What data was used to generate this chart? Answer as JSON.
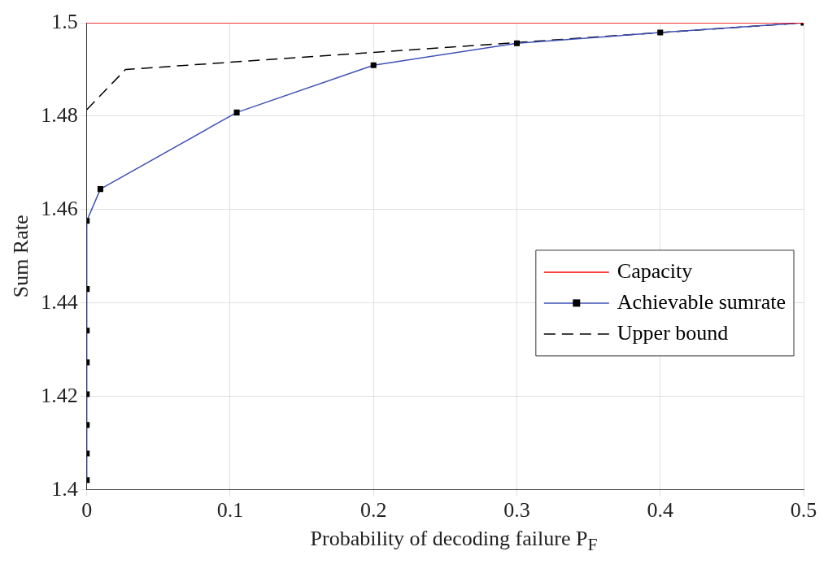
{
  "chart_data": {
    "type": "line",
    "xlabel": "Probability of decoding failure P$_{F}$",
    "ylabel": "Sum Rate",
    "xlim": [
      0,
      0.5
    ],
    "ylim": [
      1.4,
      1.5
    ],
    "xticks": [
      0,
      0.1,
      0.2,
      0.3,
      0.4,
      0.5
    ],
    "yticks": [
      1.4,
      1.42,
      1.44,
      1.46,
      1.48,
      1.5
    ],
    "grid": true,
    "legend": "right",
    "series": [
      {
        "name": "Capacity",
        "color": "#ff0000",
        "x": [
          0,
          0.5
        ],
        "values": [
          1.5,
          1.5
        ],
        "marker": "none",
        "line_style": "solid"
      },
      {
        "name": "Achievable sumrate",
        "color": "#3f51b5",
        "x": [
          0,
          0,
          0,
          0,
          0,
          0,
          0,
          0,
          0.0095,
          0.1046,
          0.2,
          0.3,
          0.4,
          0.5
        ],
        "values": [
          1.4021,
          1.4078,
          1.4139,
          1.4205,
          1.4273,
          1.4341,
          1.443,
          1.4576,
          1.4644,
          1.4808,
          1.4909,
          1.4956,
          1.4979,
          1.5
        ],
        "marker": "square",
        "line_style": "solid"
      },
      {
        "name": "Upper bound",
        "color": "#000000",
        "x": [
          0,
          0.027,
          0.5
        ],
        "values": [
          1.4814,
          1.49,
          1.5
        ],
        "marker": "none",
        "line_style": "dashed"
      }
    ]
  }
}
